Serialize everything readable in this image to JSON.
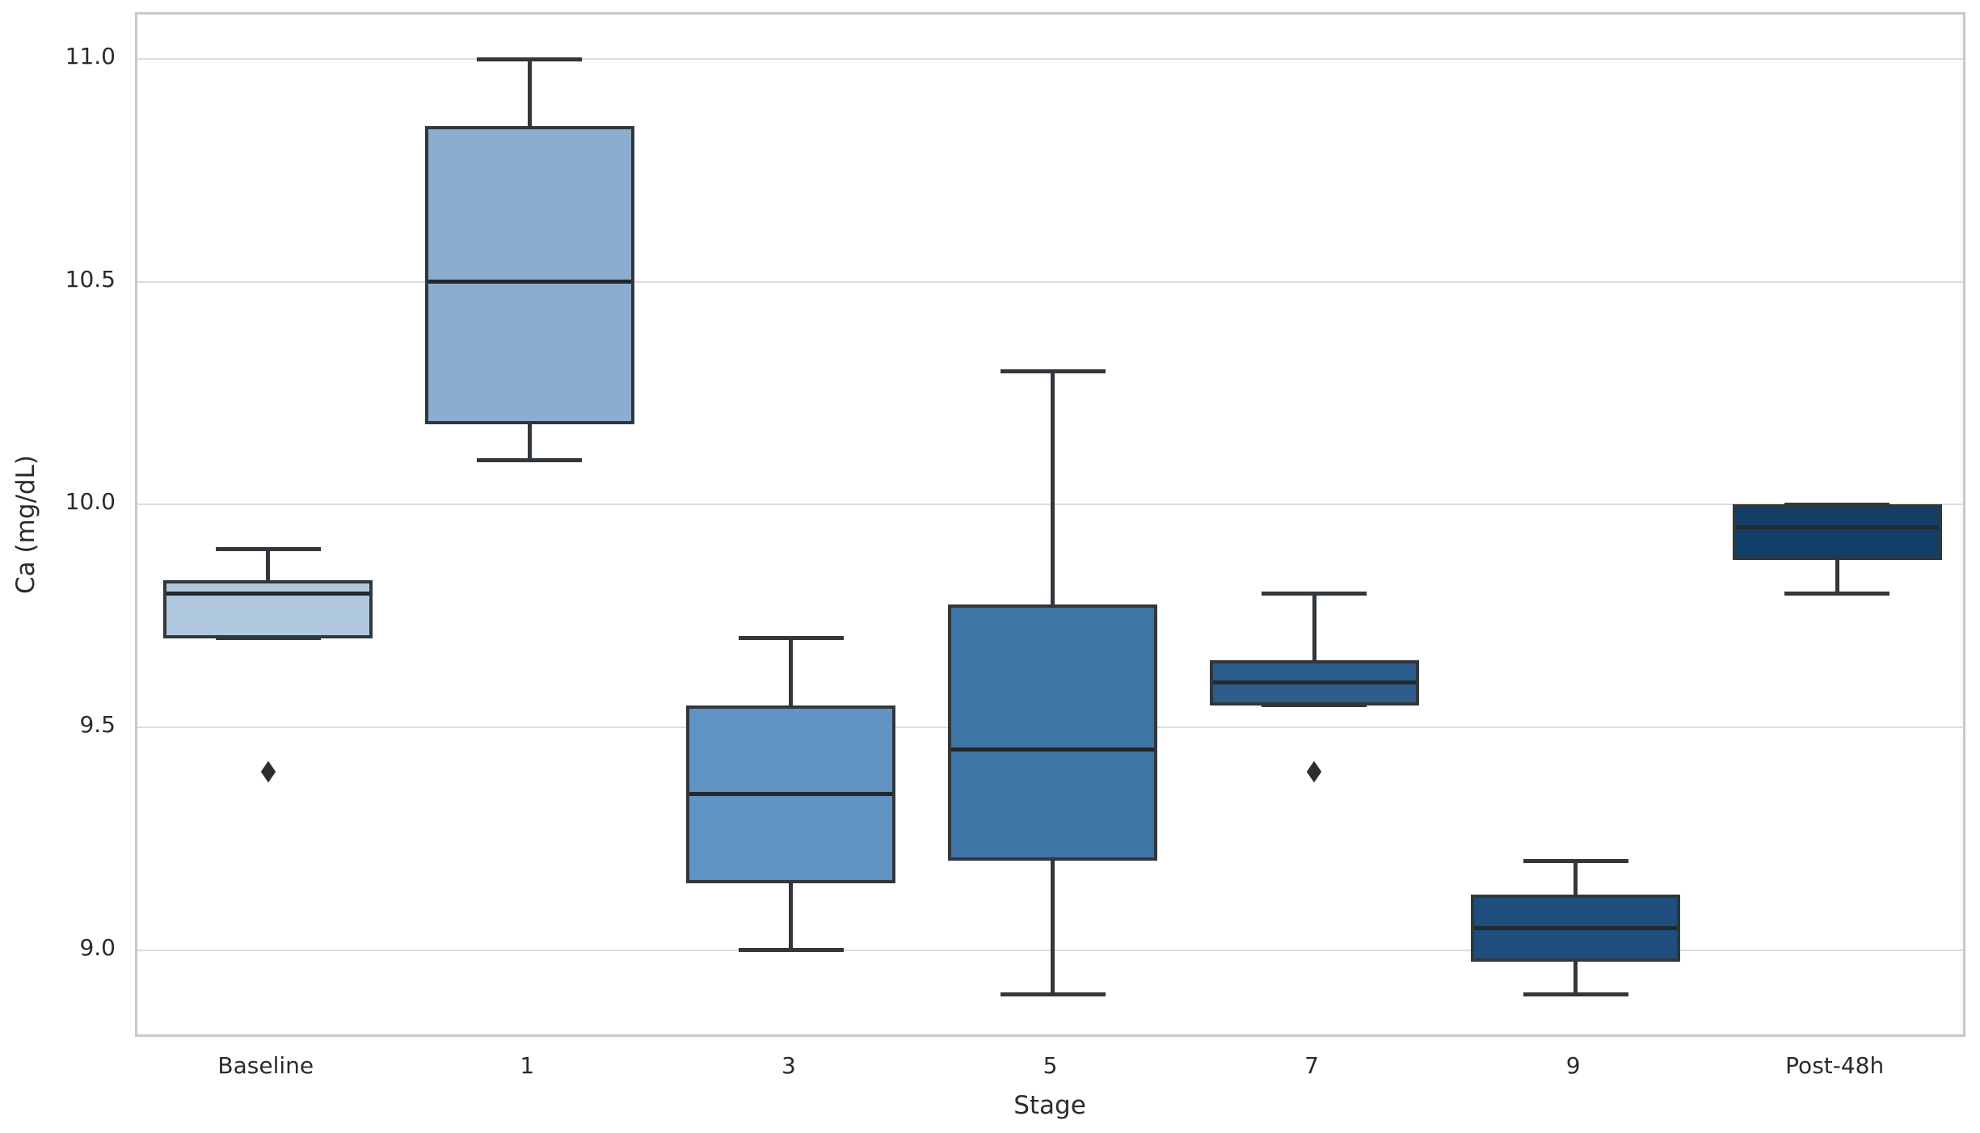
{
  "chart_data": {
    "type": "box",
    "title": "",
    "xlabel": "Stage",
    "ylabel": "Ca (mg/dL)",
    "categories": [
      "Baseline",
      "1",
      "3",
      "5",
      "7",
      "9",
      "Post-48h"
    ],
    "ylim": [
      8.8,
      11.1
    ],
    "yticks": [
      9.0,
      9.5,
      10.0,
      10.5,
      11.0
    ],
    "ytick_labels": [
      "9.0",
      "9.5",
      "10.0",
      "10.5",
      "11.0"
    ],
    "grid": true,
    "legend": "none",
    "boxes": [
      {
        "label": "Baseline",
        "whislo": 9.7,
        "q1": 9.7,
        "med": 9.8,
        "q3": 9.83,
        "whishi": 9.9,
        "fliers": [
          9.4
        ],
        "color": "#b0c8dd"
      },
      {
        "label": "1",
        "whislo": 10.1,
        "q1": 10.18,
        "med": 10.5,
        "q3": 10.85,
        "whishi": 11.0,
        "fliers": [],
        "color": "#8badd0"
      },
      {
        "label": "3",
        "whislo": 9.0,
        "q1": 9.15,
        "med": 9.35,
        "q3": 9.55,
        "whishi": 9.7,
        "fliers": [],
        "color": "#5f93c4"
      },
      {
        "label": "5",
        "whislo": 8.9,
        "q1": 9.2,
        "med": 9.45,
        "q3": 9.775,
        "whishi": 10.3,
        "fliers": [],
        "color": "#3d75a5"
      },
      {
        "label": "7",
        "whislo": 9.55,
        "q1": 9.55,
        "med": 9.6,
        "q3": 9.65,
        "whishi": 9.8,
        "fliers": [
          9.4
        ],
        "color": "#2c5d8b"
      },
      {
        "label": "9",
        "whislo": 8.9,
        "q1": 8.975,
        "med": 9.05,
        "q3": 9.125,
        "whishi": 9.2,
        "fliers": [],
        "color": "#1f4d7c"
      },
      {
        "label": "Post-48h",
        "whislo": 9.8,
        "q1": 9.875,
        "med": 9.95,
        "q3": 10.0,
        "whishi": 10.0,
        "fliers": [],
        "color": "#133e66"
      }
    ],
    "colors": {
      "grid": "#dcdcdc",
      "spine": "#c9c9c9",
      "text": "#2b2b2b",
      "box_edge": "#32373c",
      "flier": "#2e2e2e",
      "background": "#ffffff"
    }
  }
}
